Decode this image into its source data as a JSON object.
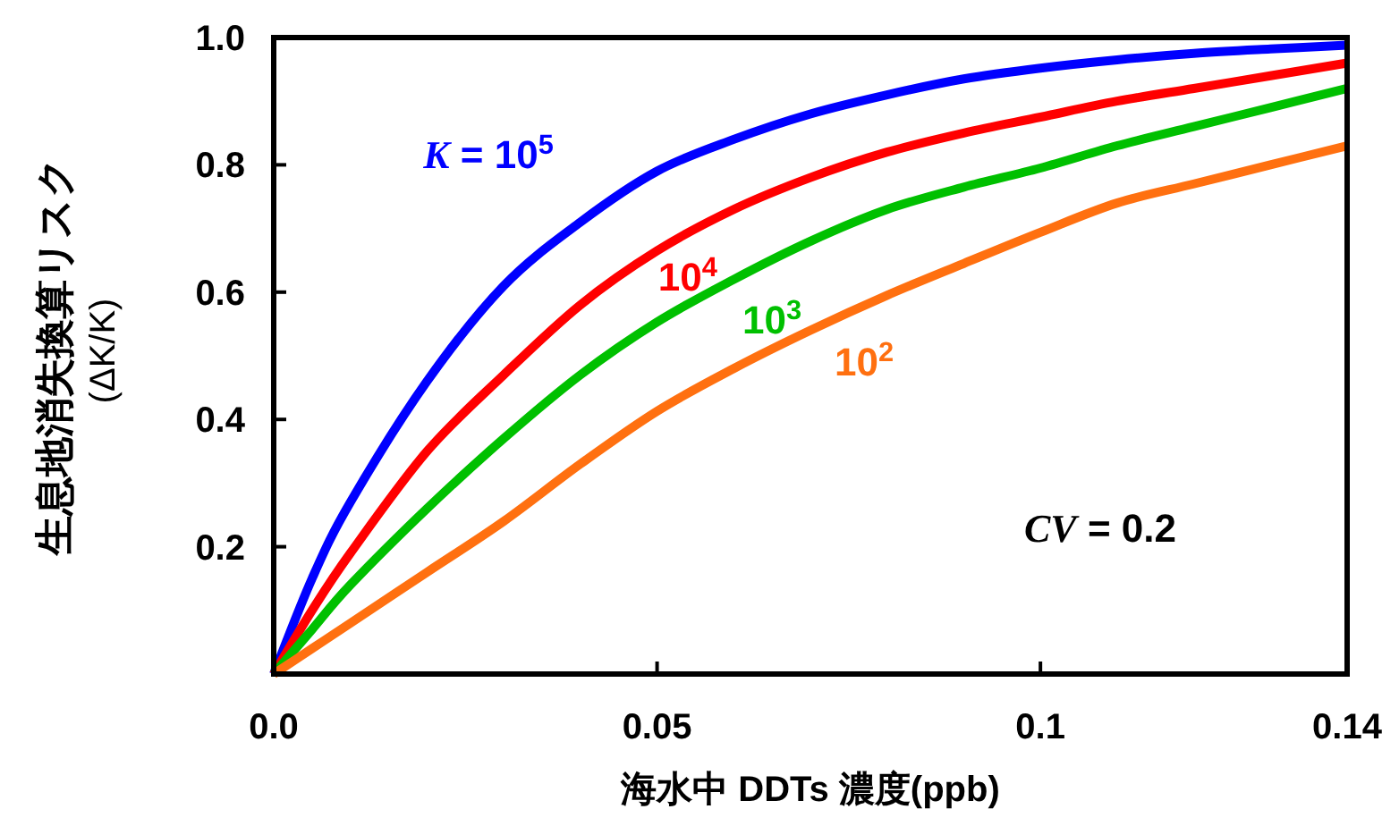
{
  "chart_data": {
    "type": "line",
    "xlabel": "海水中 DDTs 濃度(ppb)",
    "ylabel": "生息地消失換算リスク\n(ΔK/K)",
    "x": [
      0,
      0.005,
      0.01,
      0.02,
      0.03,
      0.04,
      0.05,
      0.06,
      0.07,
      0.08,
      0.09,
      0.1,
      0.11,
      0.12,
      0.13,
      0.14
    ],
    "series": [
      {
        "name": "*K* = 10$^{5}$",
        "color": "#0000ff",
        "values": [
          0,
          0.15,
          0.27,
          0.46,
          0.61,
          0.71,
          0.79,
          0.84,
          0.88,
          0.91,
          0.935,
          0.952,
          0.965,
          0.975,
          0.982,
          0.988
        ]
      },
      {
        "name": "10$^{4}$",
        "color": "#ff0000",
        "values": [
          0,
          0.1,
          0.19,
          0.35,
          0.47,
          0.58,
          0.665,
          0.73,
          0.78,
          0.82,
          0.85,
          0.875,
          0.9,
          0.92,
          0.94,
          0.96
        ]
      },
      {
        "name": "10$^{3}$",
        "color": "#00c000",
        "values": [
          0,
          0.07,
          0.14,
          0.26,
          0.37,
          0.47,
          0.553,
          0.62,
          0.68,
          0.73,
          0.765,
          0.795,
          0.83,
          0.86,
          0.89,
          0.92
        ]
      },
      {
        "name": "10$^{2}$",
        "color": "#ff7010",
        "values": [
          0,
          0.04,
          0.08,
          0.16,
          0.24,
          0.33,
          0.413,
          0.48,
          0.54,
          0.595,
          0.645,
          0.694,
          0.74,
          0.77,
          0.8,
          0.83
        ]
      }
    ],
    "annotations": [
      "*CV* = 0.2"
    ],
    "xlim": [
      0,
      0.14
    ],
    "ylim": [
      0,
      1
    ],
    "xticks": [
      {
        "value": 0,
        "label": "0.0"
      },
      0.05,
      0.1,
      0.14
    ],
    "yticks": [
      {
        "value": 0,
        "label": null
      },
      0.2,
      0.4,
      0.6,
      0.8,
      {
        "value": 1,
        "label": "1.0"
      }
    ],
    "grid": false,
    "legend": false,
    "marker": "none",
    "line_style": "solid"
  }
}
